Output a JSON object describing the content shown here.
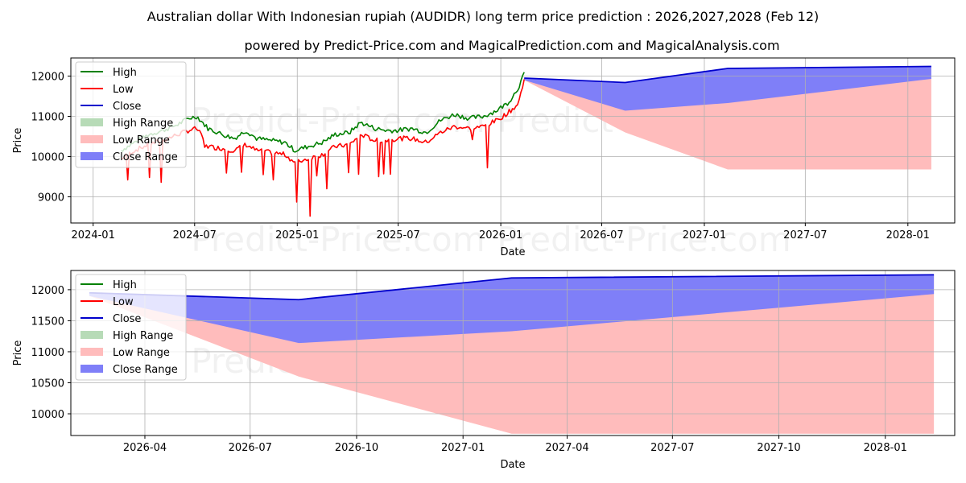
{
  "title": "Australian dollar With Indonesian rupiah (AUDIDR) long term price prediction : 2026,2027,2028 (Feb 12)",
  "subtitle": "powered by Predict-Price.com and MagicalPrediction.com and MagicalAnalysis.com",
  "watermark": "Predict-Price.com",
  "colors": {
    "high": "#008000",
    "low": "#ff0000",
    "close": "#0000cc",
    "high_range": "#b7dbb7",
    "low_range": "#ffbcbc",
    "close_range": "#7f7ff8"
  },
  "chart_data": [
    {
      "type": "line",
      "name": "full-history-and-forecast",
      "xlabel": "Date",
      "ylabel": "Price",
      "grid": true,
      "legend_position": "upper-left",
      "xlim": [
        "2023-11-22",
        "2028-03-25"
      ],
      "ylim": [
        8350,
        12450
      ],
      "x_ticks": [
        "2024-01",
        "2024-07",
        "2025-01",
        "2025-07",
        "2026-01",
        "2026-07",
        "2027-01",
        "2027-07",
        "2028-01"
      ],
      "x_tick_dates": [
        "2024-01-01",
        "2024-07-01",
        "2025-01-01",
        "2025-07-01",
        "2026-01-01",
        "2026-07-01",
        "2027-01-01",
        "2027-07-01",
        "2028-01-01"
      ],
      "y_ticks": [
        9000,
        10000,
        11000,
        12000
      ],
      "legend": [
        "High",
        "Low",
        "Close",
        "High Range",
        "Low Range",
        "Close Range"
      ],
      "history": {
        "dates": [
          "2024-02-20",
          "2024-03-15",
          "2024-04-10",
          "2024-05-05",
          "2024-06-01",
          "2024-06-20",
          "2024-07-05",
          "2024-07-25",
          "2024-08-20",
          "2024-09-10",
          "2024-10-01",
          "2024-10-20",
          "2024-11-15",
          "2024-12-10",
          "2024-12-28",
          "2025-01-20",
          "2025-02-15",
          "2025-03-10",
          "2025-04-05",
          "2025-04-25",
          "2025-05-20",
          "2025-06-10",
          "2025-07-01",
          "2025-07-25",
          "2025-08-20",
          "2025-09-15",
          "2025-10-10",
          "2025-11-05",
          "2025-12-01",
          "2025-12-25",
          "2026-01-15",
          "2026-02-01",
          "2026-02-12"
        ],
        "high": [
          10150,
          10350,
          10550,
          10650,
          10800,
          10950,
          11000,
          10700,
          10550,
          10450,
          10650,
          10450,
          10400,
          10350,
          10150,
          10250,
          10350,
          10550,
          10600,
          10850,
          10700,
          10650,
          10650,
          10700,
          10600,
          10900,
          11050,
          10950,
          11000,
          11150,
          11350,
          11700,
          12050
        ],
        "low": [
          9950,
          10150,
          10300,
          10400,
          10550,
          10650,
          10700,
          10250,
          10200,
          10150,
          10300,
          10150,
          10100,
          10050,
          9850,
          9950,
          10050,
          10250,
          10300,
          10550,
          10400,
          10400,
          10450,
          10450,
          10350,
          10600,
          10750,
          10700,
          10750,
          10900,
          11100,
          11300,
          11900
        ],
        "low_spikes": [
          {
            "date": "2024-03-02",
            "value": 9420
          },
          {
            "date": "2024-04-12",
            "value": 9480
          },
          {
            "date": "2024-05-02",
            "value": 9360
          },
          {
            "date": "2024-07-20",
            "value": 10230
          },
          {
            "date": "2024-08-28",
            "value": 9590
          },
          {
            "date": "2024-09-22",
            "value": 9610
          },
          {
            "date": "2024-11-01",
            "value": 9550
          },
          {
            "date": "2024-11-18",
            "value": 9420
          },
          {
            "date": "2024-12-30",
            "value": 8870
          },
          {
            "date": "2025-01-23",
            "value": 8520
          },
          {
            "date": "2025-02-05",
            "value": 9520
          },
          {
            "date": "2025-02-22",
            "value": 9200
          },
          {
            "date": "2025-04-02",
            "value": 9600
          },
          {
            "date": "2025-04-22",
            "value": 9560
          },
          {
            "date": "2025-05-28",
            "value": 9500
          },
          {
            "date": "2025-06-06",
            "value": 9570
          },
          {
            "date": "2025-06-18",
            "value": 9560
          },
          {
            "date": "2025-11-12",
            "value": 10420
          },
          {
            "date": "2025-12-08",
            "value": 9720
          }
        ]
      },
      "forecast": {
        "dates": [
          "2026-02-12",
          "2026-08-12",
          "2027-02-12",
          "2028-02-12"
        ],
        "close": [
          11950,
          11840,
          12190,
          12240
        ],
        "close_range_low": [
          11900,
          11140,
          11330,
          11930
        ],
        "low_range_low": [
          11900,
          10600,
          9680,
          9680
        ]
      }
    },
    {
      "type": "line",
      "name": "forecast-zoom",
      "xlabel": "Date",
      "ylabel": "Price",
      "grid": true,
      "legend_position": "upper-left",
      "xlim": [
        "2026-01-27",
        "2028-03-01"
      ],
      "ylim": [
        9650,
        12310
      ],
      "x_ticks": [
        "2026-04",
        "2026-07",
        "2026-10",
        "2027-01",
        "2027-04",
        "2027-07",
        "2027-10",
        "2028-01"
      ],
      "x_tick_dates": [
        "2026-04-01",
        "2026-07-01",
        "2026-10-01",
        "2027-01-01",
        "2027-04-01",
        "2027-07-01",
        "2027-10-01",
        "2028-01-01"
      ],
      "y_ticks": [
        10000,
        10500,
        11000,
        11500,
        12000
      ],
      "legend": [
        "High",
        "Low",
        "Close",
        "High Range",
        "Low Range",
        "Close Range"
      ],
      "forecast": {
        "dates": [
          "2026-02-12",
          "2026-08-12",
          "2027-02-12",
          "2028-02-12"
        ],
        "close": [
          11950,
          11840,
          12190,
          12240
        ],
        "close_range_low": [
          11900,
          11140,
          11330,
          11930
        ],
        "low_range_low": [
          11900,
          10600,
          9680,
          9680
        ]
      }
    }
  ]
}
